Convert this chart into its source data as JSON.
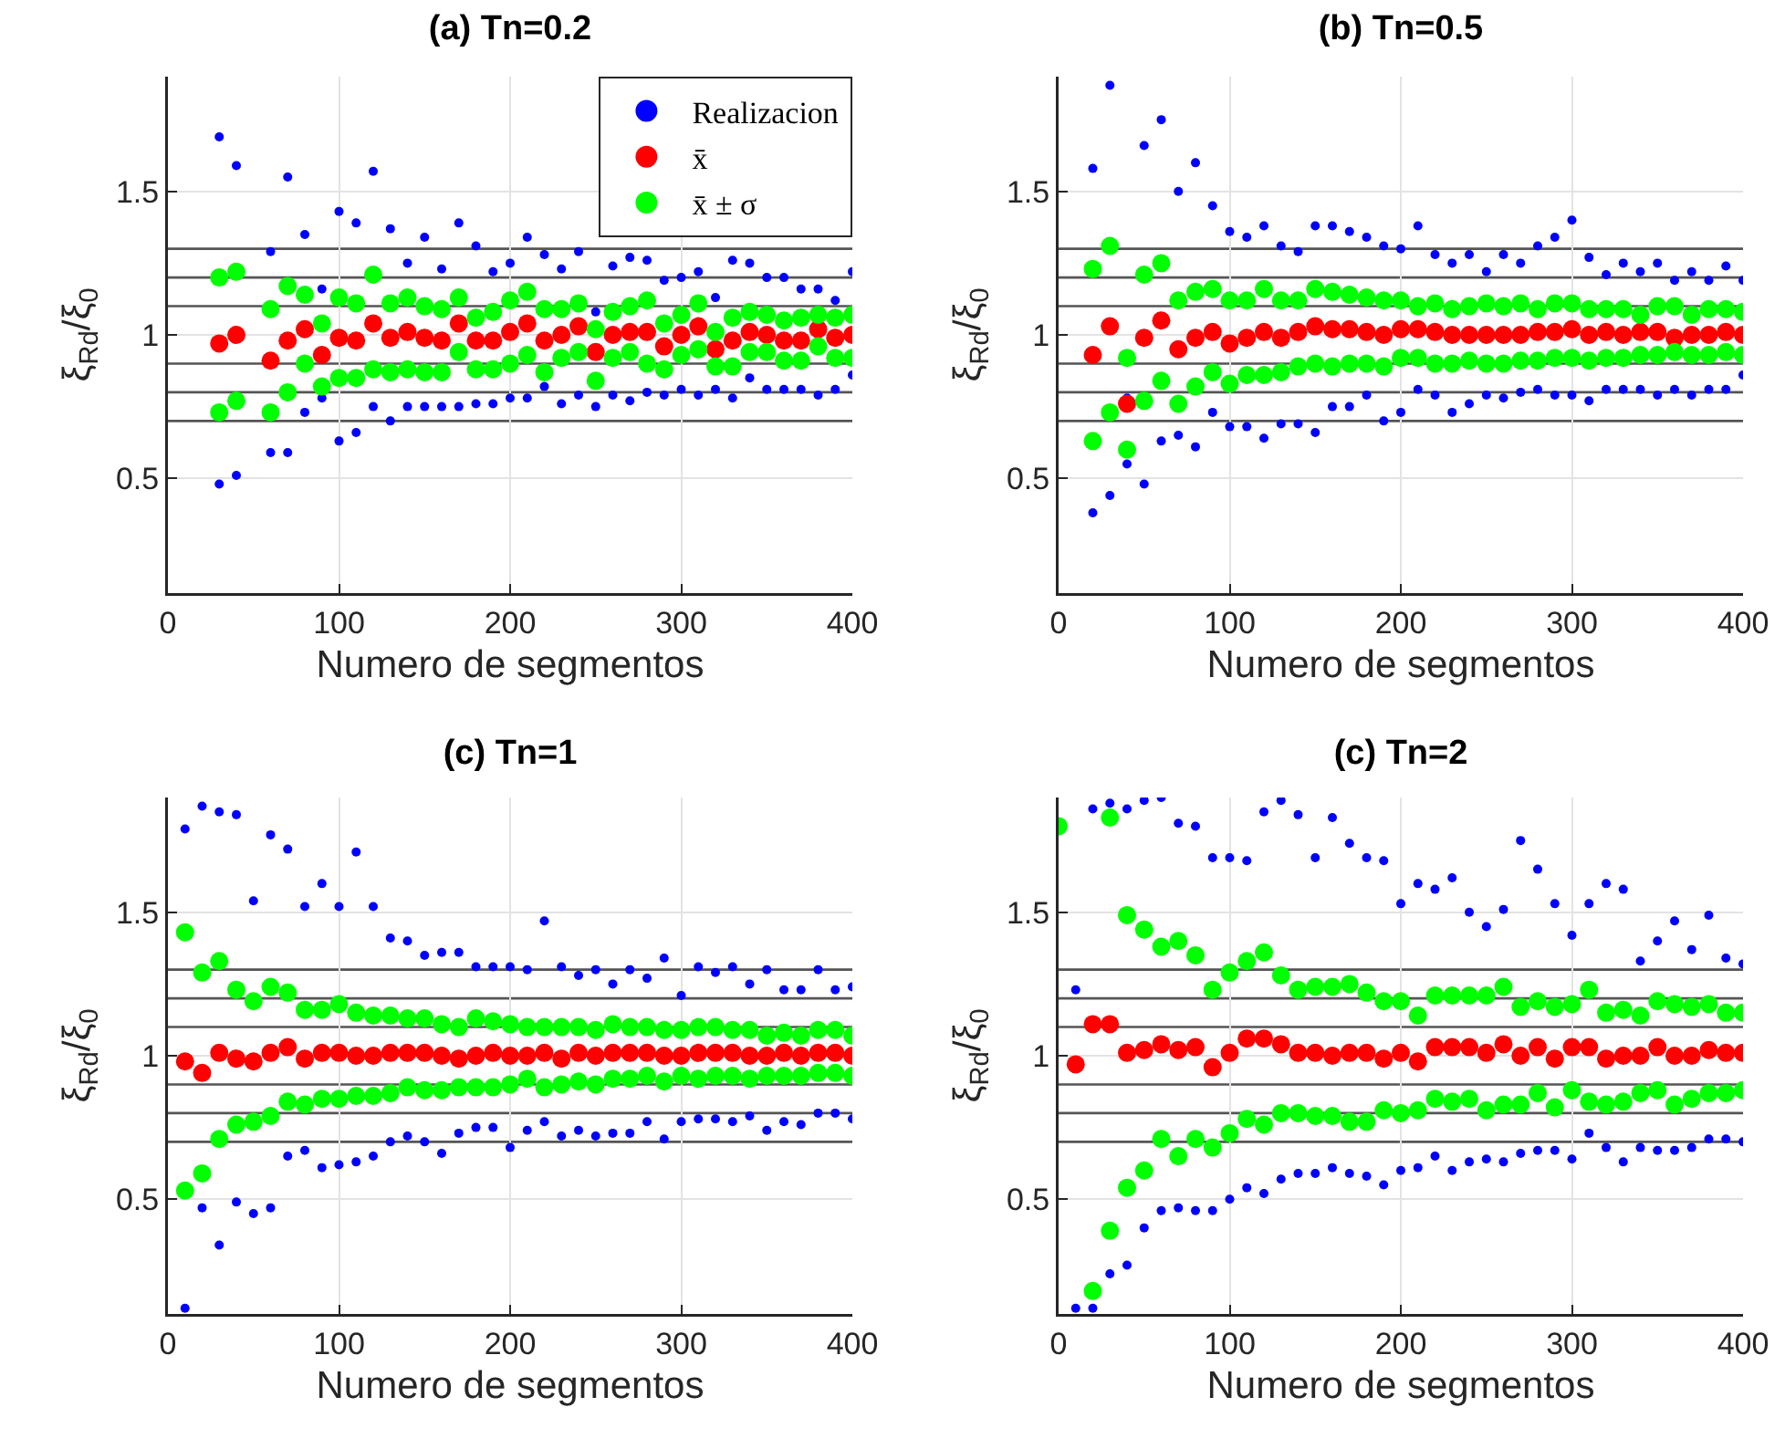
{
  "chart_data": [
    {
      "type": "scatter",
      "title": "(a) Tn=0.2",
      "xlabel": "Numero de segmentos",
      "ylabel": "ξ$_{Rd}$/ξ$_{0}$",
      "xlim": [
        0,
        400
      ],
      "xticks": [
        0,
        100,
        200,
        300,
        400
      ],
      "ylim": [
        0.1,
        1.9
      ],
      "yticks": [
        0.5,
        1,
        1.5
      ],
      "grid": true,
      "legend": "top right",
      "marker": "circle",
      "ref_lines": [
        {
          "axis": "y",
          "value": 0.7,
          "color": "#555555"
        },
        {
          "axis": "y",
          "value": 0.8,
          "color": "#555555"
        },
        {
          "axis": "y",
          "value": 0.9,
          "color": "#555555"
        },
        {
          "axis": "y",
          "value": 1.1,
          "color": "#555555"
        },
        {
          "axis": "y",
          "value": 1.2,
          "color": "#555555"
        },
        {
          "axis": "y",
          "value": 1.3,
          "color": "#555555"
        }
      ],
      "series": [
        {
          "name": "Realizacion",
          "color": "#0000ff",
          "x": [
            30,
            30,
            40,
            40,
            60,
            60,
            70,
            70,
            80,
            80,
            90,
            90,
            100,
            100,
            110,
            110,
            120,
            120,
            130,
            130,
            140,
            140,
            150,
            150,
            160,
            160,
            170,
            170,
            180,
            180,
            190,
            190,
            200,
            200,
            210,
            210,
            220,
            220,
            230,
            230,
            240,
            240,
            250,
            250,
            260,
            260,
            270,
            270,
            280,
            280,
            290,
            290,
            300,
            300,
            310,
            310,
            320,
            320,
            330,
            330,
            340,
            340,
            350,
            350,
            360,
            360,
            370,
            370,
            380,
            380,
            390,
            390,
            400,
            400
          ],
          "values": [
            1.69,
            0.48,
            1.59,
            0.51,
            1.29,
            0.59,
            1.55,
            0.59,
            1.35,
            0.73,
            1.16,
            0.78,
            1.43,
            0.63,
            1.39,
            0.66,
            1.57,
            0.75,
            1.37,
            0.7,
            1.25,
            0.75,
            1.34,
            0.75,
            1.23,
            0.75,
            1.39,
            0.75,
            1.31,
            0.76,
            1.22,
            0.76,
            1.25,
            0.78,
            1.34,
            0.78,
            1.28,
            0.82,
            1.23,
            0.76,
            1.29,
            0.79,
            1.08,
            0.75,
            1.24,
            0.79,
            1.27,
            0.77,
            1.26,
            0.8,
            1.19,
            0.79,
            1.2,
            0.81,
            1.22,
            0.79,
            1.13,
            0.81,
            1.26,
            0.78,
            1.25,
            0.85,
            1.2,
            0.81,
            1.2,
            0.81,
            1.16,
            0.81,
            1.16,
            0.79,
            1.12,
            0.81,
            1.22,
            0.86
          ]
        },
        {
          "name": "x̄",
          "color": "#ff0000",
          "x": [
            30,
            40,
            60,
            70,
            80,
            90,
            100,
            110,
            120,
            130,
            140,
            150,
            160,
            170,
            180,
            190,
            200,
            210,
            220,
            230,
            240,
            250,
            260,
            270,
            280,
            290,
            300,
            310,
            320,
            330,
            340,
            350,
            360,
            370,
            380,
            390,
            400
          ],
          "values": [
            0.97,
            1.0,
            0.91,
            0.98,
            1.02,
            0.93,
            0.99,
            0.98,
            1.04,
            0.99,
            1.01,
            0.99,
            0.98,
            1.04,
            0.98,
            0.98,
            1.01,
            1.04,
            0.98,
            1.0,
            1.03,
            0.94,
            1.0,
            1.01,
            1.01,
            0.96,
            1.0,
            1.03,
            0.95,
            0.98,
            1.01,
            1.0,
            0.98,
            0.98,
            1.02,
            0.99,
            1.0
          ]
        },
        {
          "name": "x̄ ± σ",
          "color": "#00ff00",
          "x": [
            30,
            30,
            40,
            40,
            60,
            60,
            70,
            70,
            80,
            80,
            90,
            90,
            100,
            100,
            110,
            110,
            120,
            120,
            130,
            130,
            140,
            140,
            150,
            150,
            160,
            160,
            170,
            170,
            180,
            180,
            190,
            190,
            200,
            200,
            210,
            210,
            220,
            220,
            230,
            230,
            240,
            240,
            250,
            250,
            260,
            260,
            270,
            270,
            280,
            280,
            290,
            290,
            300,
            300,
            310,
            310,
            320,
            320,
            330,
            330,
            340,
            340,
            350,
            350,
            360,
            360,
            370,
            370,
            380,
            380,
            390,
            390,
            400,
            400
          ],
          "values": [
            1.2,
            0.73,
            1.22,
            0.77,
            1.09,
            0.73,
            1.17,
            0.8,
            1.14,
            0.9,
            1.04,
            0.82,
            1.13,
            0.85,
            1.11,
            0.85,
            1.21,
            0.88,
            1.11,
            0.87,
            1.13,
            0.88,
            1.1,
            0.87,
            1.09,
            0.87,
            1.13,
            0.94,
            1.06,
            0.88,
            1.08,
            0.88,
            1.12,
            0.9,
            1.15,
            0.93,
            1.09,
            0.87,
            1.09,
            0.92,
            1.11,
            0.94,
            1.02,
            0.84,
            1.08,
            0.92,
            1.1,
            0.94,
            1.12,
            0.9,
            1.04,
            0.88,
            1.07,
            0.93,
            1.11,
            0.95,
            1.01,
            0.89,
            1.06,
            0.89,
            1.08,
            0.94,
            1.07,
            0.94,
            1.05,
            0.91,
            1.06,
            0.91,
            1.07,
            0.96,
            1.06,
            0.92,
            1.07,
            0.92
          ]
        }
      ]
    },
    {
      "type": "scatter",
      "title": "(b) Tn=0.5",
      "xlabel": "Numero de segmentos",
      "ylabel": "ξ$_{Rd}$/ξ$_{0}$",
      "xlim": [
        0,
        400
      ],
      "xticks": [
        0,
        100,
        200,
        300,
        400
      ],
      "ylim": [
        0.1,
        1.9
      ],
      "yticks": [
        0.5,
        1,
        1.5
      ],
      "grid": true,
      "marker": "circle",
      "ref_lines": [
        {
          "axis": "y",
          "value": 0.7,
          "color": "#555555"
        },
        {
          "axis": "y",
          "value": 0.8,
          "color": "#555555"
        },
        {
          "axis": "y",
          "value": 0.9,
          "color": "#555555"
        },
        {
          "axis": "y",
          "value": 1.1,
          "color": "#555555"
        },
        {
          "axis": "y",
          "value": 1.2,
          "color": "#555555"
        },
        {
          "axis": "y",
          "value": 1.3,
          "color": "#555555"
        }
      ],
      "series": [
        {
          "color": "#0000ff",
          "x": [
            20,
            20,
            30,
            30,
            40,
            40,
            50,
            50,
            60,
            60,
            70,
            70,
            80,
            80,
            90,
            90,
            100,
            100,
            110,
            110,
            120,
            120,
            130,
            130,
            140,
            140,
            150,
            150,
            160,
            160,
            170,
            170,
            180,
            180,
            190,
            190,
            200,
            200,
            210,
            210,
            220,
            220,
            230,
            230,
            240,
            240,
            250,
            250,
            260,
            260,
            270,
            270,
            280,
            280,
            290,
            290,
            300,
            300,
            310,
            310,
            320,
            320,
            330,
            330,
            340,
            340,
            350,
            350,
            360,
            360,
            370,
            370,
            380,
            380,
            390,
            390,
            400,
            400
          ],
          "values": [
            1.58,
            0.38,
            1.87,
            0.44,
            0.78,
            0.55,
            1.66,
            0.48,
            1.75,
            0.63,
            1.5,
            0.65,
            1.6,
            0.61,
            1.45,
            0.73,
            1.36,
            0.68,
            1.34,
            0.68,
            1.38,
            0.64,
            1.31,
            0.69,
            1.29,
            0.69,
            1.38,
            0.66,
            1.38,
            0.75,
            1.36,
            0.75,
            1.34,
            0.79,
            1.31,
            0.7,
            1.3,
            0.73,
            1.38,
            0.81,
            1.28,
            0.79,
            1.25,
            0.73,
            1.28,
            0.76,
            1.22,
            0.79,
            1.28,
            0.78,
            1.25,
            0.8,
            1.31,
            0.81,
            1.34,
            0.79,
            1.4,
            0.79,
            1.27,
            0.77,
            1.21,
            0.81,
            1.25,
            0.81,
            1.22,
            0.81,
            1.25,
            0.79,
            1.19,
            0.81,
            1.22,
            0.79,
            1.19,
            0.81,
            1.24,
            0.81,
            1.19,
            0.86
          ]
        },
        {
          "color": "#ff0000",
          "x": [
            20,
            30,
            40,
            50,
            60,
            70,
            80,
            90,
            100,
            110,
            120,
            130,
            140,
            150,
            160,
            170,
            180,
            190,
            200,
            210,
            220,
            230,
            240,
            250,
            260,
            270,
            280,
            290,
            300,
            310,
            320,
            330,
            340,
            350,
            360,
            370,
            380,
            390,
            400
          ],
          "values": [
            0.93,
            1.03,
            0.76,
            0.99,
            1.05,
            0.95,
            0.99,
            1.01,
            0.97,
            0.99,
            1.01,
            0.99,
            1.01,
            1.03,
            1.02,
            1.02,
            1.01,
            1.0,
            1.02,
            1.02,
            1.01,
            1.0,
            1.0,
            1.0,
            1.0,
            1.0,
            1.01,
            1.01,
            1.02,
            1.0,
            1.01,
            1.0,
            1.01,
            1.01,
            0.99,
            1.0,
            1.0,
            1.01,
            1.0
          ]
        },
        {
          "color": "#00ff00",
          "x": [
            20,
            20,
            30,
            30,
            40,
            40,
            50,
            50,
            60,
            60,
            70,
            70,
            80,
            80,
            90,
            90,
            100,
            100,
            110,
            110,
            120,
            120,
            130,
            130,
            140,
            140,
            150,
            150,
            160,
            160,
            170,
            170,
            180,
            180,
            190,
            190,
            200,
            200,
            210,
            210,
            220,
            220,
            230,
            230,
            240,
            240,
            250,
            250,
            260,
            260,
            270,
            270,
            280,
            280,
            290,
            290,
            300,
            300,
            310,
            310,
            320,
            320,
            330,
            330,
            340,
            340,
            350,
            350,
            360,
            360,
            370,
            370,
            380,
            380,
            390,
            390,
            400,
            400
          ],
          "values": [
            1.23,
            0.63,
            1.31,
            0.73,
            0.92,
            0.6,
            1.21,
            0.77,
            1.25,
            0.84,
            1.12,
            0.76,
            1.15,
            0.82,
            1.16,
            0.87,
            1.12,
            0.83,
            1.12,
            0.86,
            1.16,
            0.86,
            1.12,
            0.87,
            1.12,
            0.89,
            1.16,
            0.9,
            1.15,
            0.89,
            1.14,
            0.9,
            1.13,
            0.9,
            1.12,
            0.89,
            1.12,
            0.92,
            1.1,
            0.92,
            1.11,
            0.9,
            1.09,
            0.9,
            1.1,
            0.91,
            1.11,
            0.9,
            1.1,
            0.9,
            1.11,
            0.91,
            1.09,
            0.91,
            1.11,
            0.92,
            1.11,
            0.92,
            1.09,
            0.91,
            1.09,
            0.92,
            1.09,
            0.92,
            1.07,
            0.93,
            1.1,
            0.93,
            1.1,
            0.94,
            1.07,
            0.93,
            1.09,
            0.93,
            1.09,
            0.94,
            1.08,
            0.93
          ]
        }
      ]
    },
    {
      "type": "scatter",
      "title": "(c) Tn=1",
      "xlabel": "Numero de segmentos",
      "ylabel": "ξ$_{Rd}$/ξ$_{0}$",
      "xlim": [
        0,
        400
      ],
      "xticks": [
        0,
        100,
        200,
        300,
        400
      ],
      "ylim": [
        0.1,
        1.9
      ],
      "yticks": [
        0.5,
        1,
        1.5
      ],
      "grid": true,
      "marker": "circle",
      "ref_lines": [
        {
          "axis": "y",
          "value": 0.7,
          "color": "#555555"
        },
        {
          "axis": "y",
          "value": 0.8,
          "color": "#555555"
        },
        {
          "axis": "y",
          "value": 0.9,
          "color": "#555555"
        },
        {
          "axis": "y",
          "value": 1.1,
          "color": "#555555"
        },
        {
          "axis": "y",
          "value": 1.2,
          "color": "#555555"
        },
        {
          "axis": "y",
          "value": 1.3,
          "color": "#555555"
        }
      ],
      "series": [
        {
          "color": "#0000ff",
          "x": [
            10,
            10,
            20,
            20,
            30,
            30,
            40,
            40,
            50,
            50,
            60,
            60,
            70,
            70,
            80,
            80,
            90,
            90,
            100,
            100,
            110,
            110,
            120,
            120,
            130,
            130,
            140,
            140,
            150,
            150,
            160,
            160,
            170,
            170,
            180,
            180,
            190,
            190,
            200,
            200,
            210,
            210,
            220,
            220,
            230,
            230,
            240,
            240,
            250,
            250,
            260,
            260,
            270,
            270,
            280,
            280,
            290,
            290,
            300,
            300,
            310,
            310,
            320,
            320,
            330,
            330,
            340,
            340,
            350,
            350,
            360,
            360,
            370,
            370,
            380,
            380,
            390,
            390,
            400,
            400
          ],
          "values": [
            1.79,
            0.12,
            1.87,
            0.47,
            1.85,
            0.34,
            1.84,
            0.49,
            1.54,
            0.45,
            1.77,
            0.47,
            1.72,
            0.65,
            1.52,
            0.67,
            1.6,
            0.61,
            1.52,
            0.62,
            1.71,
            0.63,
            1.52,
            0.65,
            1.41,
            0.7,
            1.4,
            0.72,
            1.35,
            0.7,
            1.36,
            0.66,
            1.36,
            0.73,
            1.31,
            0.75,
            1.31,
            0.75,
            1.31,
            0.68,
            1.3,
            0.74,
            1.47,
            0.77,
            1.31,
            0.72,
            1.28,
            0.74,
            1.3,
            0.72,
            1.25,
            0.73,
            1.3,
            0.73,
            1.27,
            0.77,
            1.34,
            0.71,
            1.21,
            0.77,
            1.31,
            0.78,
            1.29,
            0.78,
            1.31,
            0.77,
            1.25,
            0.79,
            1.3,
            0.74,
            1.23,
            0.77,
            1.23,
            0.76,
            1.3,
            0.8,
            1.23,
            0.8,
            1.24,
            0.78
          ]
        },
        {
          "color": "#ff0000",
          "x": [
            10,
            20,
            30,
            40,
            50,
            60,
            70,
            80,
            90,
            100,
            110,
            120,
            130,
            140,
            150,
            160,
            170,
            180,
            190,
            200,
            210,
            220,
            230,
            240,
            250,
            260,
            270,
            280,
            290,
            300,
            310,
            320,
            330,
            340,
            350,
            360,
            370,
            380,
            390,
            400
          ],
          "values": [
            0.98,
            0.94,
            1.01,
            0.99,
            0.98,
            1.01,
            1.03,
            0.99,
            1.01,
            1.01,
            1.0,
            1.0,
            1.01,
            1.01,
            1.01,
            1.0,
            0.99,
            1.0,
            1.01,
            1.0,
            1.0,
            1.01,
            0.99,
            1.01,
            1.0,
            1.01,
            1.01,
            1.01,
            1.0,
            1.0,
            1.01,
            1.01,
            1.01,
            1.0,
            1.0,
            1.01,
            1.0,
            1.01,
            1.01,
            1.0
          ]
        },
        {
          "color": "#00ff00",
          "x": [
            10,
            10,
            20,
            20,
            30,
            30,
            40,
            40,
            50,
            50,
            60,
            60,
            70,
            70,
            80,
            80,
            90,
            90,
            100,
            100,
            110,
            110,
            120,
            120,
            130,
            130,
            140,
            140,
            150,
            150,
            160,
            160,
            170,
            170,
            180,
            180,
            190,
            190,
            200,
            200,
            210,
            210,
            220,
            220,
            230,
            230,
            240,
            240,
            250,
            250,
            260,
            260,
            270,
            270,
            280,
            280,
            290,
            290,
            300,
            300,
            310,
            310,
            320,
            320,
            330,
            330,
            340,
            340,
            350,
            350,
            360,
            360,
            370,
            370,
            380,
            380,
            390,
            390,
            400,
            400
          ],
          "values": [
            1.43,
            0.53,
            1.29,
            0.59,
            1.33,
            0.71,
            1.23,
            0.76,
            1.19,
            0.77,
            1.24,
            0.79,
            1.22,
            0.84,
            1.16,
            0.83,
            1.16,
            0.85,
            1.18,
            0.85,
            1.15,
            0.86,
            1.14,
            0.86,
            1.14,
            0.87,
            1.13,
            0.89,
            1.13,
            0.88,
            1.11,
            0.88,
            1.1,
            0.89,
            1.13,
            0.89,
            1.12,
            0.89,
            1.11,
            0.9,
            1.1,
            0.92,
            1.1,
            0.89,
            1.1,
            0.9,
            1.1,
            0.91,
            1.09,
            0.9,
            1.11,
            0.92,
            1.1,
            0.92,
            1.1,
            0.93,
            1.09,
            0.91,
            1.09,
            0.93,
            1.1,
            0.92,
            1.1,
            0.93,
            1.09,
            0.93,
            1.09,
            0.92,
            1.07,
            0.93,
            1.08,
            0.93,
            1.07,
            0.93,
            1.09,
            0.94,
            1.09,
            0.94,
            1.07,
            0.93
          ]
        }
      ]
    },
    {
      "type": "scatter",
      "title": "(c) Tn=2",
      "xlabel": "Numero de segmentos",
      "ylabel": "ξ$_{Rd}$/ξ$_{0}$",
      "xlim": [
        0,
        400
      ],
      "xticks": [
        0,
        100,
        200,
        300,
        400
      ],
      "ylim": [
        0.1,
        1.9
      ],
      "yticks": [
        0.5,
        1,
        1.5
      ],
      "grid": true,
      "marker": "circle",
      "ref_lines": [
        {
          "axis": "y",
          "value": 0.7,
          "color": "#555555"
        },
        {
          "axis": "y",
          "value": 0.8,
          "color": "#555555"
        },
        {
          "axis": "y",
          "value": 0.9,
          "color": "#555555"
        },
        {
          "axis": "y",
          "value": 1.1,
          "color": "#555555"
        },
        {
          "axis": "y",
          "value": 1.2,
          "color": "#555555"
        },
        {
          "axis": "y",
          "value": 1.3,
          "color": "#555555"
        }
      ],
      "series": [
        {
          "color": "#0000ff",
          "x": [
            10,
            10,
            20,
            20,
            30,
            30,
            40,
            40,
            50,
            50,
            60,
            60,
            70,
            70,
            80,
            80,
            90,
            90,
            100,
            100,
            110,
            110,
            120,
            120,
            130,
            130,
            140,
            140,
            150,
            150,
            160,
            160,
            170,
            170,
            180,
            180,
            190,
            190,
            200,
            200,
            210,
            210,
            220,
            220,
            230,
            230,
            240,
            240,
            250,
            250,
            260,
            260,
            270,
            270,
            280,
            280,
            290,
            290,
            300,
            300,
            310,
            310,
            320,
            320,
            330,
            330,
            340,
            340,
            350,
            350,
            360,
            360,
            370,
            370,
            380,
            380,
            390,
            390,
            400,
            400
          ],
          "values": [
            1.23,
            0.12,
            1.86,
            0.12,
            1.88,
            0.24,
            1.86,
            0.27,
            1.89,
            0.4,
            1.9,
            0.46,
            1.81,
            0.47,
            1.8,
            0.46,
            1.69,
            0.46,
            1.69,
            0.5,
            1.68,
            0.54,
            1.85,
            0.52,
            1.89,
            0.57,
            1.84,
            0.59,
            1.69,
            0.59,
            1.83,
            0.61,
            1.74,
            0.59,
            1.69,
            0.58,
            1.68,
            0.55,
            1.53,
            0.6,
            1.6,
            0.61,
            1.58,
            0.65,
            1.62,
            0.6,
            1.5,
            0.63,
            1.45,
            0.64,
            1.51,
            0.63,
            1.75,
            0.66,
            1.65,
            0.67,
            1.53,
            0.67,
            1.42,
            0.64,
            1.53,
            0.73,
            1.6,
            0.68,
            1.58,
            0.63,
            1.33,
            0.68,
            1.4,
            0.67,
            1.47,
            0.67,
            1.37,
            0.68,
            1.49,
            0.71,
            1.34,
            0.71,
            1.32,
            0.7
          ]
        },
        {
          "color": "#ff0000",
          "x": [
            10,
            20,
            30,
            40,
            50,
            60,
            70,
            80,
            90,
            100,
            110,
            120,
            130,
            140,
            150,
            160,
            170,
            180,
            190,
            200,
            210,
            220,
            230,
            240,
            250,
            260,
            270,
            280,
            290,
            300,
            310,
            320,
            330,
            340,
            350,
            360,
            370,
            380,
            390,
            400
          ],
          "values": [
            0.97,
            1.11,
            1.11,
            1.01,
            1.02,
            1.04,
            1.02,
            1.03,
            0.96,
            1.01,
            1.06,
            1.06,
            1.04,
            1.01,
            1.01,
            1.0,
            1.01,
            1.01,
            0.99,
            1.01,
            0.98,
            1.03,
            1.03,
            1.03,
            1.01,
            1.04,
            1.0,
            1.03,
            0.99,
            1.03,
            1.03,
            0.99,
            1.0,
            1.0,
            1.03,
            1.0,
            1.0,
            1.02,
            1.01,
            1.01
          ]
        },
        {
          "color": "#00ff00",
          "x": [
            0,
            20,
            30,
            30,
            40,
            40,
            50,
            50,
            60,
            60,
            70,
            70,
            80,
            80,
            90,
            90,
            100,
            100,
            110,
            110,
            120,
            120,
            130,
            130,
            140,
            140,
            150,
            150,
            160,
            160,
            170,
            170,
            180,
            180,
            190,
            190,
            200,
            200,
            210,
            210,
            220,
            220,
            230,
            230,
            240,
            240,
            250,
            250,
            260,
            260,
            270,
            270,
            280,
            280,
            290,
            290,
            300,
            300,
            310,
            310,
            320,
            320,
            330,
            330,
            340,
            340,
            350,
            350,
            360,
            360,
            370,
            370,
            380,
            380,
            390,
            390,
            400,
            400
          ],
          "values": [
            1.8,
            0.18,
            1.83,
            0.39,
            1.49,
            0.54,
            1.44,
            0.6,
            1.38,
            0.71,
            1.4,
            0.65,
            1.35,
            0.71,
            1.23,
            0.68,
            1.29,
            0.73,
            1.33,
            0.78,
            1.36,
            0.76,
            1.28,
            0.8,
            1.23,
            0.8,
            1.24,
            0.79,
            1.24,
            0.79,
            1.25,
            0.77,
            1.22,
            0.77,
            1.19,
            0.81,
            1.19,
            0.8,
            1.14,
            0.81,
            1.21,
            0.85,
            1.21,
            0.84,
            1.21,
            0.85,
            1.21,
            0.81,
            1.24,
            0.83,
            1.17,
            0.83,
            1.19,
            0.87,
            1.17,
            0.82,
            1.18,
            0.88,
            1.23,
            0.84,
            1.15,
            0.83,
            1.16,
            0.84,
            1.14,
            0.87,
            1.19,
            0.88,
            1.18,
            0.83,
            1.17,
            0.85,
            1.18,
            0.87,
            1.15,
            0.87,
            1.15,
            0.88
          ]
        }
      ]
    }
  ]
}
